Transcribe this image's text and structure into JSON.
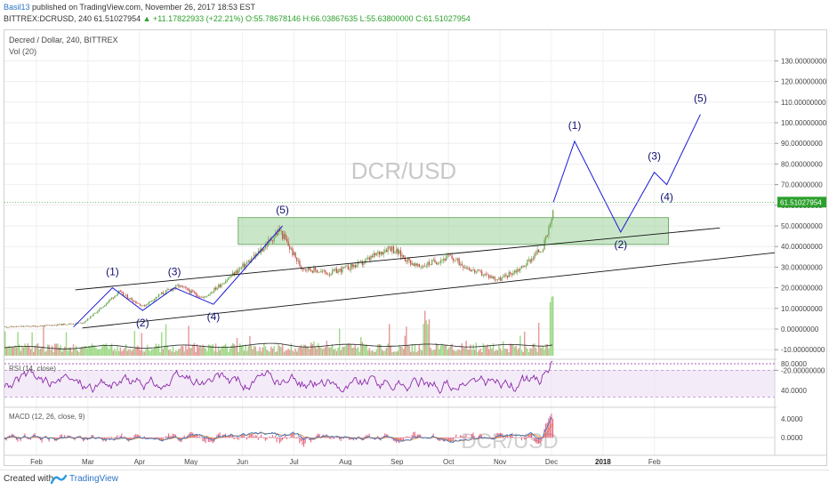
{
  "header": {
    "author": "Basil13",
    "published_text": "published on TradingView.com, November 26, 2017 18:53 EST",
    "symbol": "BITTREX:DCRUSD, 240",
    "last": "61.51027954",
    "change": "▲ +11.17822933 (+22.21%)",
    "ohlc_o": "O:55.78678146",
    "ohlc_h": "H:66.03867635",
    "ohlc_l": "L:55.63800000",
    "ohlc_c": "C:61.51027954"
  },
  "chart_title": "Decred / Dollar, 240, BITTREX",
  "vol_label": "Vol (20)",
  "watermark": "DCR/USD",
  "rsi_label": "RSI (14, close)",
  "macd_label": "MACD (12, 26, close, 9)",
  "footer": {
    "created_with": "Created with",
    "brand": "TradingView"
  },
  "colors": {
    "bull": "#6aa84f",
    "bear": "#cc4b4b",
    "wave": "#1a1ad6",
    "zone": "#9fd19a",
    "rsi": "#8a2ba8",
    "price_tag": "#2ca02c",
    "volume_up": "#8fd275",
    "volume_down": "#e08a8a"
  },
  "chart_data": {
    "type": "candlestick",
    "symbol": "BITTREX:DCRUSD",
    "timeframe": "240",
    "last_price": 61.51027954,
    "y_ticks": [
      "130.00000000",
      "120.00000000",
      "110.00000000",
      "100.00000000",
      "90.00000000",
      "80.00000000",
      "70.00000000",
      "60.00000000",
      "50.00000000",
      "40.00000000",
      "30.00000000",
      "20.00000000",
      "10.00000000",
      "0.00000000",
      "-10.00000000",
      "-20.00000000"
    ],
    "rsi_ticks": [
      "80.0000",
      "40.0000"
    ],
    "macd_ticks": [
      "4.0000",
      "0.0000"
    ],
    "x_ticks": [
      "Feb",
      "Mar",
      "Apr",
      "May",
      "Jun",
      "Jul",
      "Aug",
      "Sep",
      "Oct",
      "Nov",
      "Dec",
      "2018",
      "Feb"
    ],
    "price_path": [
      [
        "2017-01-20",
        1
      ],
      [
        "2017-02-10",
        1.5
      ],
      [
        "2017-03-05",
        3
      ],
      [
        "2017-03-15",
        10
      ],
      [
        "2017-03-25",
        18
      ],
      [
        "2017-04-08",
        11
      ],
      [
        "2017-04-18",
        17
      ],
      [
        "2017-04-28",
        21
      ],
      [
        "2017-05-12",
        15
      ],
      [
        "2017-05-28",
        26
      ],
      [
        "2017-06-10",
        35
      ],
      [
        "2017-06-24",
        48
      ],
      [
        "2017-07-06",
        30
      ],
      [
        "2017-07-22",
        27
      ],
      [
        "2017-08-10",
        32
      ],
      [
        "2017-08-25",
        40
      ],
      [
        "2017-09-10",
        30
      ],
      [
        "2017-09-28",
        35
      ],
      [
        "2017-10-12",
        28
      ],
      [
        "2017-10-26",
        24
      ],
      [
        "2017-11-08",
        30
      ],
      [
        "2017-11-20",
        40
      ],
      [
        "2017-11-24",
        50
      ],
      [
        "2017-11-26",
        61.5
      ]
    ],
    "elliott_waves": [
      {
        "label": "(1)",
        "x": "2017-03-22",
        "y": 20
      },
      {
        "label": "(2)",
        "x": "2017-04-08",
        "y": 9
      },
      {
        "label": "(3)",
        "x": "2017-04-26",
        "y": 20
      },
      {
        "label": "(4)",
        "x": "2017-05-18",
        "y": 12
      },
      {
        "label": "(5)",
        "x": "2017-06-26",
        "y": 50
      },
      {
        "label": "(1)",
        "x": "2017-12-08",
        "y": 91
      },
      {
        "label": "(2)",
        "x": "2018-01-03",
        "y": 47
      },
      {
        "label": "(3)",
        "x": "2018-01-22",
        "y": 76
      },
      {
        "label": "(4)",
        "x": "2018-01-29",
        "y": 70
      },
      {
        "label": "(5)",
        "x": "2018-02-17",
        "y": 104
      }
    ],
    "resistance_zone": {
      "from": "2017-06-01",
      "to": "2018-01-30",
      "low": 41,
      "high": 54
    },
    "channel_upper": [
      [
        "2017-03-01",
        19
      ],
      [
        "2018-02-28",
        49
      ]
    ],
    "channel_lower": [
      [
        "2017-03-05",
        0.5
      ],
      [
        "2018-03-31",
        37
      ]
    ]
  }
}
